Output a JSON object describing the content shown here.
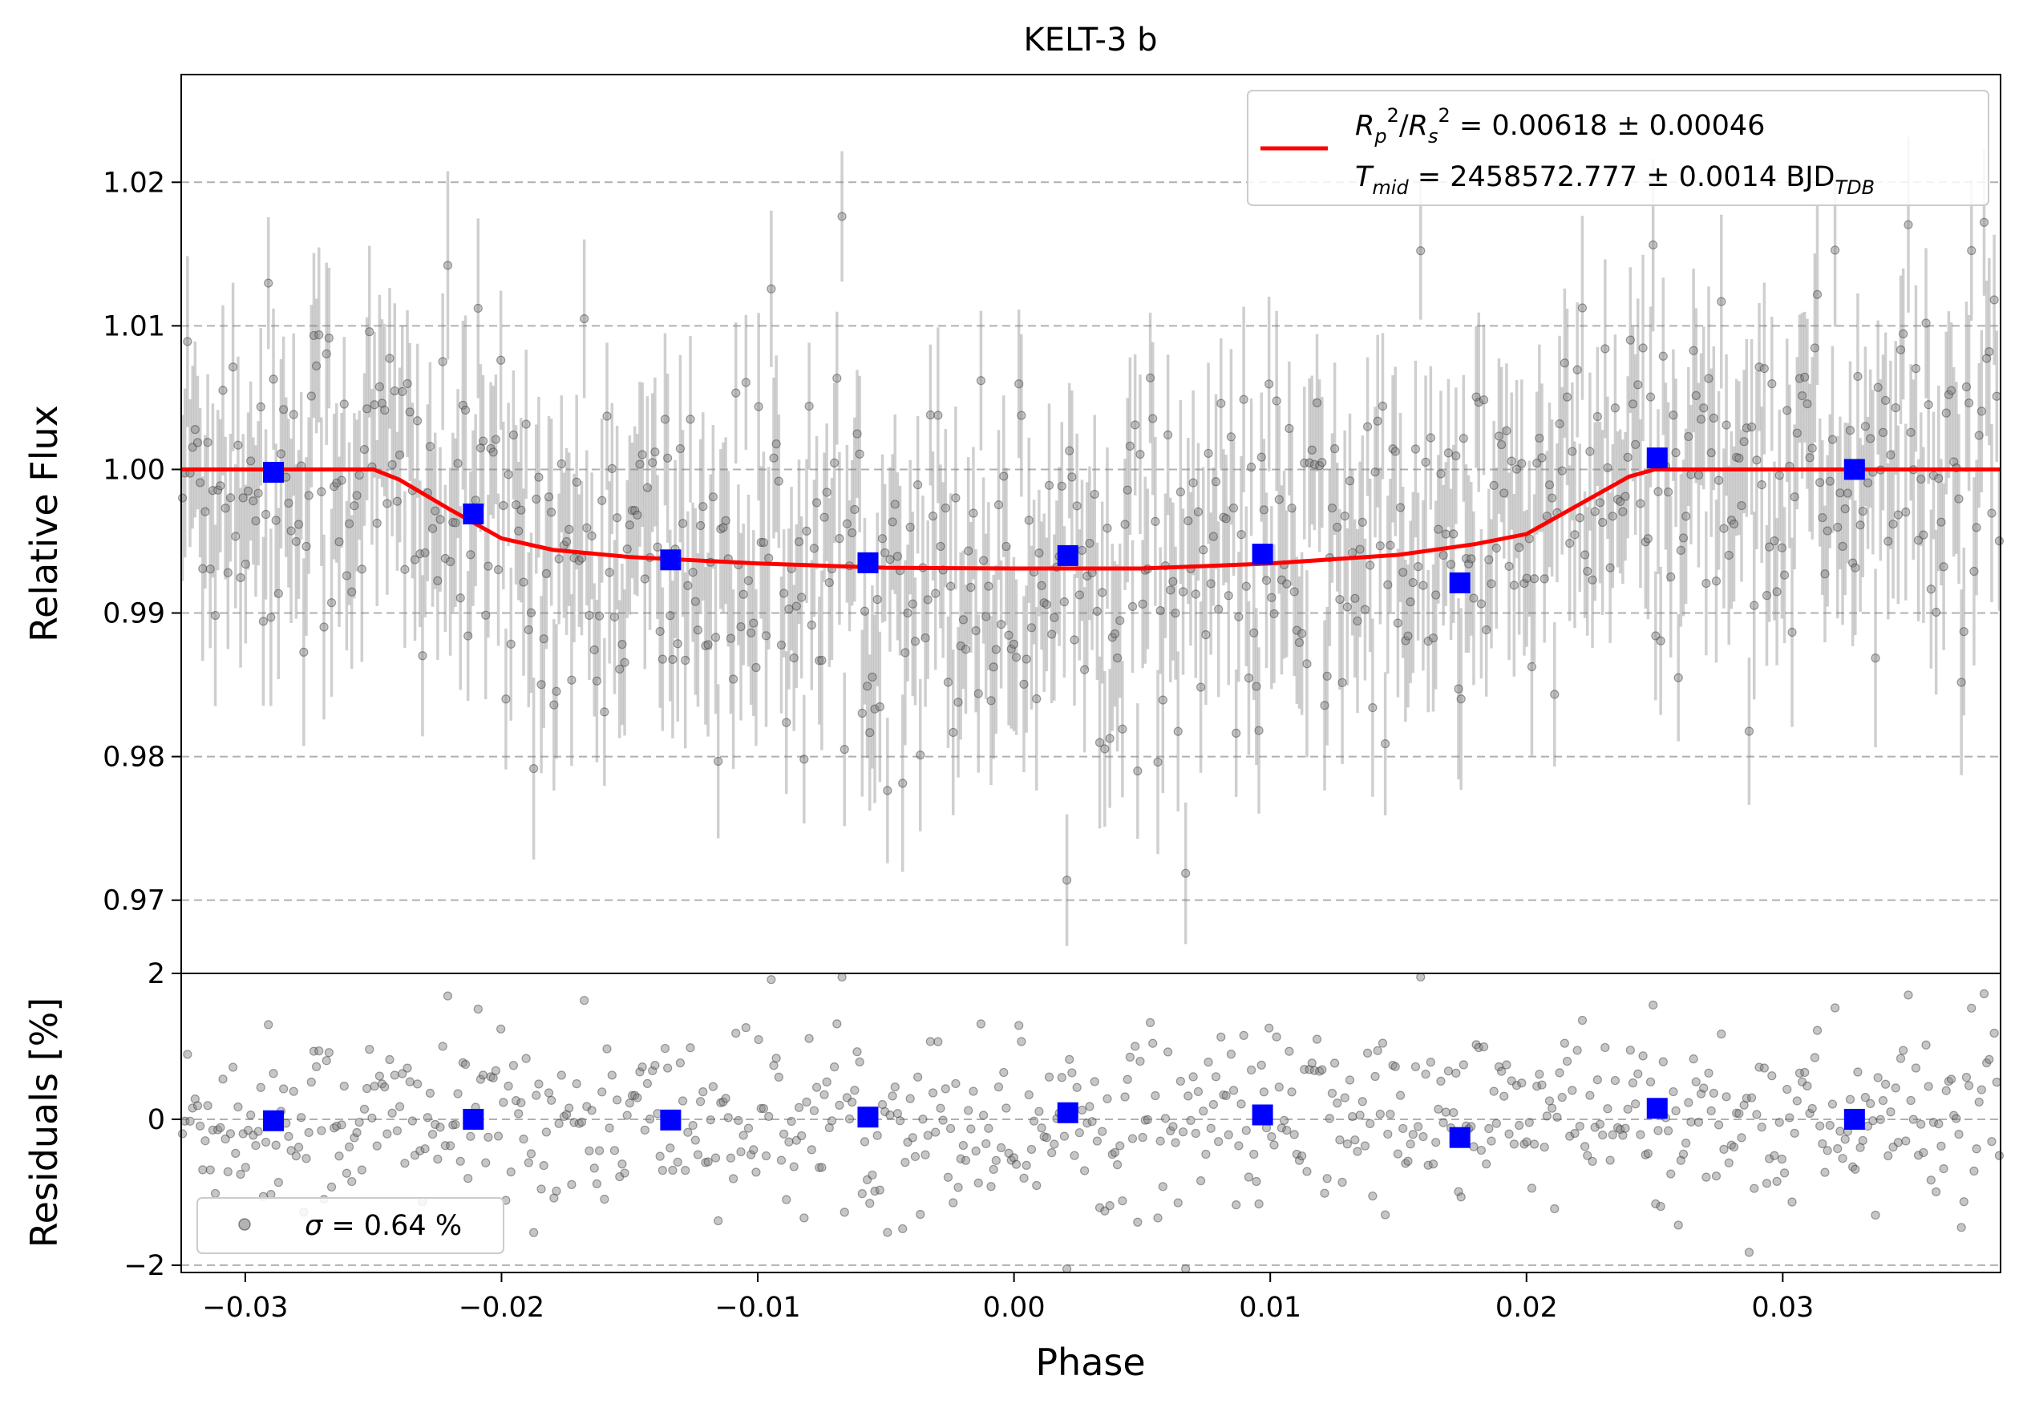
{
  "chart_data": [
    {
      "type": "scatter",
      "panel": "top",
      "title": "KELT-3 b",
      "xlabel": "",
      "ylabel": "Relative Flux",
      "xlim": [
        -0.0325,
        0.0385
      ],
      "ylim": [
        0.9649,
        1.0275
      ],
      "yticks": [
        0.97,
        0.98,
        0.99,
        1.0,
        1.01,
        1.02
      ],
      "ytick_labels": [
        "0.97",
        "0.98",
        "0.99",
        "1.00",
        "1.01",
        "1.02"
      ],
      "grid": "horizontal dashed",
      "legend_position": "top-right",
      "legend": [
        {
          "line1": "R_p^2/R_s^2 = 0.00618 ± 0.00046",
          "line2": "T_mid = 2458572.777 ± 0.0014 BJD_TDB",
          "color": "#ff0000"
        }
      ],
      "model": {
        "name": "transit model",
        "color": "#ff0000",
        "x": [
          -0.0325,
          -0.025,
          -0.024,
          -0.022,
          -0.02,
          -0.018,
          -0.015,
          -0.01,
          -0.005,
          0.0,
          0.005,
          0.01,
          0.015,
          0.018,
          0.02,
          0.022,
          0.024,
          0.025,
          0.0385
        ],
        "y": [
          1.0,
          1.0,
          0.9993,
          0.9972,
          0.9952,
          0.9944,
          0.9939,
          0.99345,
          0.99315,
          0.9931,
          0.9931,
          0.99345,
          0.99405,
          0.9948,
          0.9955,
          0.9975,
          0.9995,
          1.0,
          1.0
        ]
      },
      "binned": {
        "color": "#0000ff",
        "x": [
          -0.0289,
          -0.0211,
          -0.0134,
          -0.0057,
          0.0021,
          0.0097,
          0.0174,
          0.0251,
          0.0328
        ],
        "y": [
          0.9998,
          0.9969,
          0.9937,
          0.9935,
          0.994,
          0.9941,
          0.9921,
          1.0008,
          1.0
        ]
      },
      "raw_points": {
        "description": "unbinned photometry with error bars (gray, semi-transparent)",
        "count": 720,
        "scatter_std": 0.0064,
        "typical_error": 0.0055
      }
    },
    {
      "type": "scatter",
      "panel": "bottom",
      "xlabel": "Phase",
      "ylabel": "Residuals [%]",
      "xlim": [
        -0.0325,
        0.0385
      ],
      "ylim": [
        -2.1,
        2.0
      ],
      "xticks": [
        -0.03,
        -0.02,
        -0.01,
        0.0,
        0.01,
        0.02,
        0.03
      ],
      "xtick_labels": [
        "−0.03",
        "−0.02",
        "−0.01",
        "0.00",
        "0.01",
        "0.02",
        "0.03"
      ],
      "yticks": [
        -2,
        0,
        2
      ],
      "ytick_labels": [
        "−2",
        "0",
        "2"
      ],
      "grid": "horizontal dashed",
      "legend_position": "lower-left",
      "legend": [
        {
          "label": "σ = 0.64 %",
          "color": "#808080"
        }
      ],
      "binned": {
        "color": "#0000ff",
        "x": [
          -0.0289,
          -0.0211,
          -0.0134,
          -0.0057,
          0.0021,
          0.0097,
          0.0174,
          0.0251,
          0.0328
        ],
        "y": [
          -0.02,
          0.0,
          -0.01,
          0.03,
          0.09,
          0.06,
          -0.25,
          0.15,
          0.0
        ]
      },
      "raw_points": {
        "count": 720,
        "scatter_std": 0.64
      }
    }
  ]
}
